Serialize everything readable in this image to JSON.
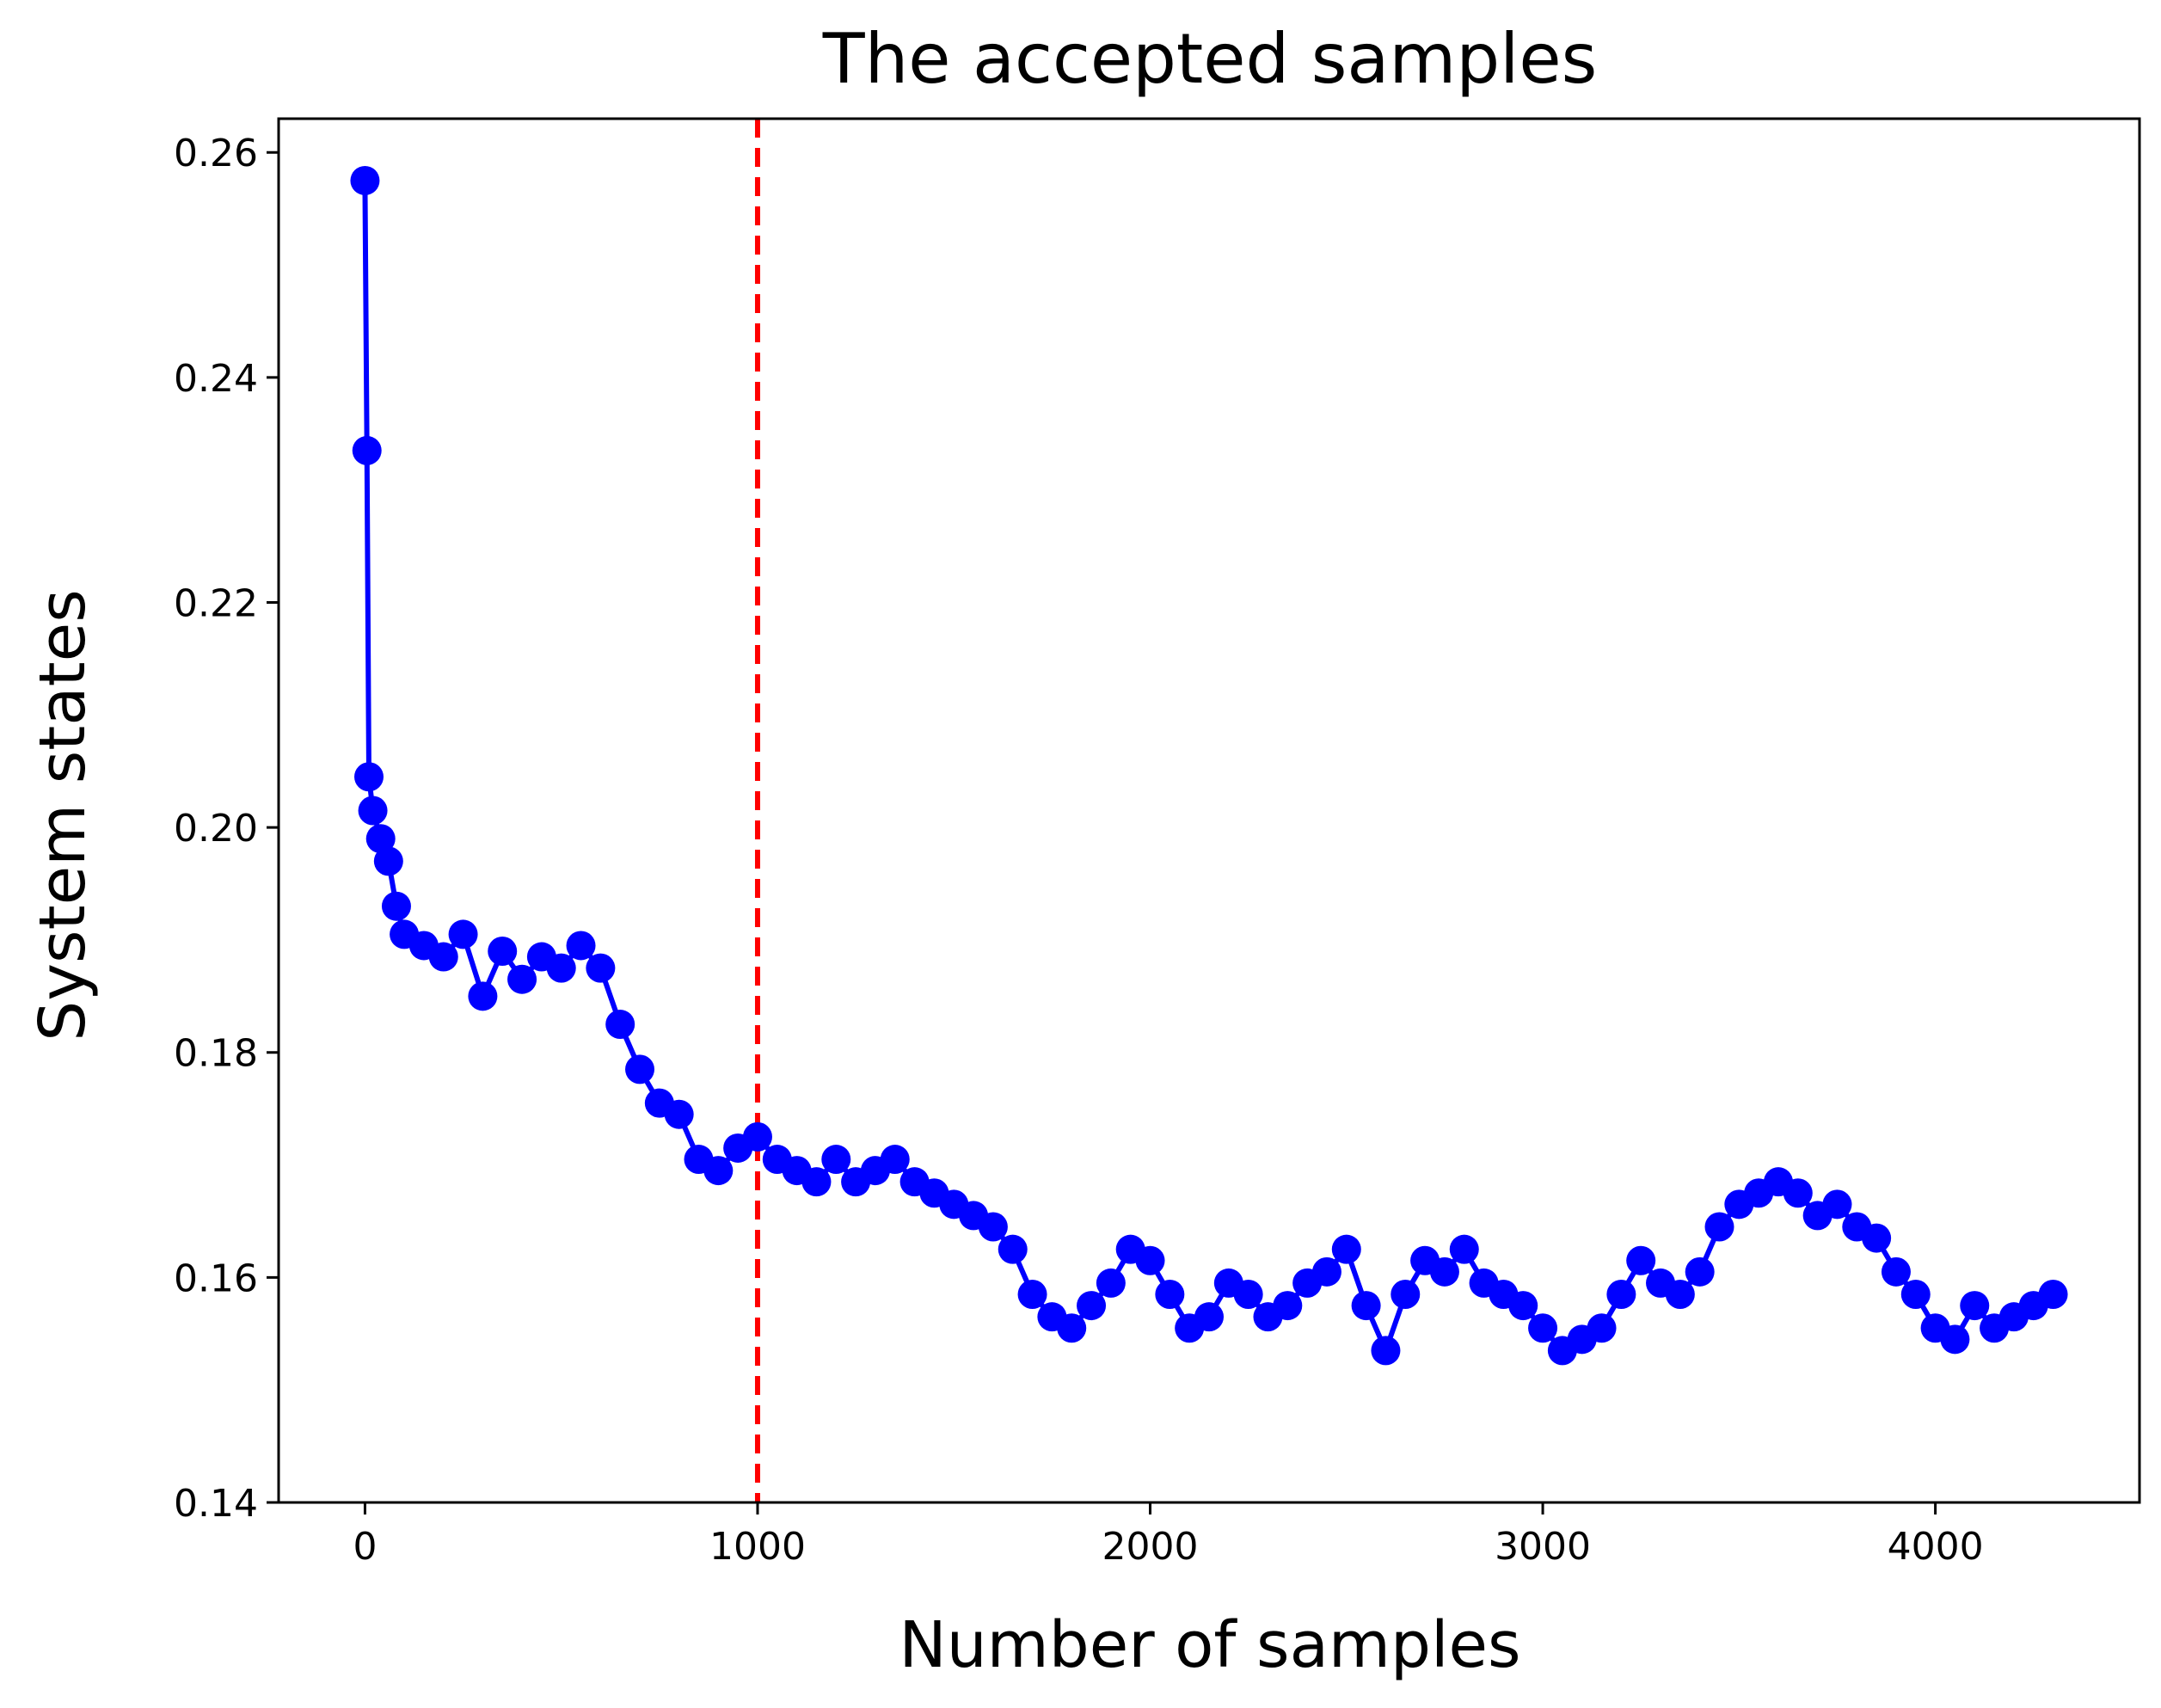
{
  "chart_data": {
    "type": "line",
    "title": "The accepted samples",
    "xlabel": "Number of samples",
    "ylabel": "System states",
    "xlim": [
      -220,
      4520
    ],
    "ylim": [
      0.14,
      0.263
    ],
    "xticks": [
      0,
      1000,
      2000,
      3000,
      4000
    ],
    "xtick_labels": [
      "0",
      "1000",
      "2000",
      "3000",
      "4000"
    ],
    "yticks": [
      0.14,
      0.16,
      0.18,
      0.2,
      0.22,
      0.24,
      0.26
    ],
    "ytick_labels": [
      "0.14",
      "0.16",
      "0.18",
      "0.20",
      "0.22",
      "0.24",
      "0.26"
    ],
    "grid": false,
    "series_color": "#0000ff",
    "marker": "circle",
    "burn_in_line": {
      "x": 1000,
      "color": "#ff0000",
      "style": "dashed"
    },
    "series": [
      {
        "name": "accepted samples",
        "x": [
          0,
          5,
          10,
          20,
          40,
          60,
          80,
          100,
          150,
          200,
          250,
          300,
          350,
          400,
          450,
          500,
          550,
          600,
          650,
          700,
          750,
          800,
          850,
          900,
          950,
          1000,
          1050,
          1100,
          1150,
          1200,
          1250,
          1300,
          1350,
          1400,
          1450,
          1500,
          1550,
          1600,
          1650,
          1700,
          1750,
          1800,
          1850,
          1900,
          1950,
          2000,
          2050,
          2100,
          2150,
          2200,
          2250,
          2300,
          2350,
          2400,
          2450,
          2500,
          2550,
          2600,
          2650,
          2700,
          2750,
          2800,
          2850,
          2900,
          2950,
          3000,
          3050,
          3100,
          3150,
          3200,
          3250,
          3300,
          3350,
          3400,
          3450,
          3500,
          3550,
          3600,
          3650,
          3700,
          3750,
          3800,
          3850,
          3900,
          3950,
          4000,
          4050,
          4100,
          4150,
          4200,
          4250,
          4300
        ],
        "y": [
          0.2575,
          0.2335,
          0.2045,
          0.2015,
          0.199,
          0.197,
          0.193,
          0.1905,
          0.1895,
          0.1885,
          0.1905,
          0.185,
          0.189,
          0.1865,
          0.1885,
          0.1875,
          0.1895,
          0.1875,
          0.1825,
          0.1785,
          0.1755,
          0.1745,
          0.1705,
          0.1695,
          0.1715,
          0.1725,
          0.1705,
          0.1695,
          0.1685,
          0.1705,
          0.1685,
          0.1695,
          0.1705,
          0.1685,
          0.1675,
          0.1665,
          0.1655,
          0.1645,
          0.1625,
          0.1585,
          0.1565,
          0.1555,
          0.1575,
          0.1595,
          0.1625,
          0.1615,
          0.1585,
          0.1555,
          0.1565,
          0.1595,
          0.1585,
          0.1565,
          0.1575,
          0.1595,
          0.1605,
          0.1625,
          0.1575,
          0.1535,
          0.1585,
          0.1615,
          0.1605,
          0.1625,
          0.1595,
          0.1585,
          0.1575,
          0.1555,
          0.1535,
          0.1545,
          0.1555,
          0.1585,
          0.1615,
          0.1595,
          0.1585,
          0.1605,
          0.1645,
          0.1665,
          0.1675,
          0.1685,
          0.1675,
          0.1655,
          0.1665,
          0.1645,
          0.1635,
          0.1605,
          0.1585,
          0.1555,
          0.1545,
          0.1575,
          0.1555,
          0.1565,
          0.1575,
          0.1585
        ]
      }
    ]
  }
}
